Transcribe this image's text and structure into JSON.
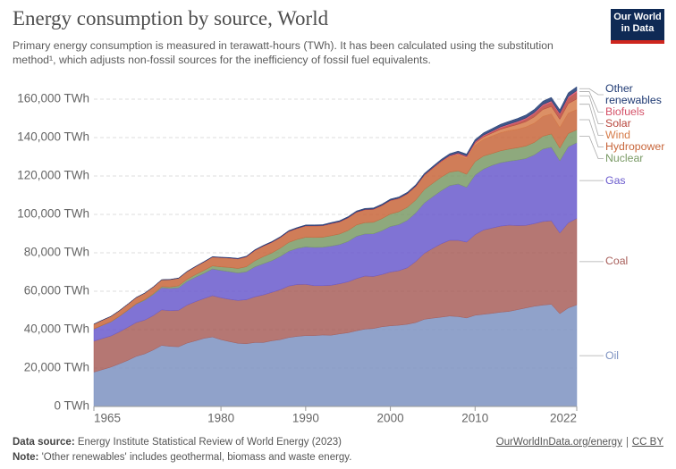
{
  "header": {
    "title": "Energy consumption by source, World",
    "subtitle": "Primary energy consumption is measured in terawatt-hours (TWh). It has been calculated using the  substitution method¹, which adjusts non-fossil sources for the inefficiency of fossil fuel equivalents.",
    "logo": "Our World in Data"
  },
  "chart_data": {
    "type": "stacked-area",
    "x": [
      1965,
      1966,
      1967,
      1968,
      1969,
      1970,
      1971,
      1972,
      1973,
      1974,
      1975,
      1976,
      1977,
      1978,
      1979,
      1980,
      1981,
      1982,
      1983,
      1984,
      1985,
      1986,
      1987,
      1988,
      1989,
      1990,
      1991,
      1992,
      1993,
      1994,
      1995,
      1996,
      1997,
      1998,
      1999,
      2000,
      2001,
      2002,
      2003,
      2004,
      2005,
      2006,
      2007,
      2008,
      2009,
      2010,
      2011,
      2012,
      2013,
      2014,
      2015,
      2016,
      2017,
      2018,
      2019,
      2020,
      2021,
      2022
    ],
    "xlim": [
      1965,
      2022
    ],
    "xticks": [
      1965,
      1980,
      1990,
      2000,
      2010,
      2022
    ],
    "ylim": [
      0,
      170000
    ],
    "yticks": [
      {
        "value": 0,
        "label": "0 TWh"
      },
      {
        "value": 20000,
        "label": "20,000 TWh"
      },
      {
        "value": 40000,
        "label": "40,000 TWh"
      },
      {
        "value": 60000,
        "label": "60,000 TWh"
      },
      {
        "value": 80000,
        "label": "80,000 TWh"
      },
      {
        "value": 100000,
        "label": "100,000 TWh"
      },
      {
        "value": 120000,
        "label": "120,000 TWh"
      },
      {
        "value": 140000,
        "label": "140,000 TWh"
      },
      {
        "value": 160000,
        "label": "160,000 TWh"
      }
    ],
    "grid": true,
    "series": [
      {
        "name": "Oil",
        "color": "#7d92c1",
        "values": [
          17900,
          19200,
          20500,
          22200,
          24000,
          26100,
          27400,
          29400,
          31800,
          31300,
          31100,
          33000,
          34200,
          35500,
          36200,
          34800,
          33800,
          32900,
          32700,
          33300,
          33300,
          34200,
          34800,
          35900,
          36500,
          36900,
          36900,
          37200,
          37100,
          37800,
          38400,
          39400,
          40300,
          40600,
          41500,
          42000,
          42300,
          42800,
          43700,
          45400,
          46000,
          46500,
          47100,
          46800,
          46100,
          47500,
          48000,
          48500,
          49100,
          49500,
          50400,
          51300,
          52200,
          52800,
          53200,
          48300,
          51300,
          52900
        ]
      },
      {
        "name": "Coal",
        "color": "#a85f5a",
        "values": [
          16100,
          16200,
          16200,
          16600,
          17200,
          17600,
          17600,
          17900,
          18500,
          18600,
          19000,
          19800,
          20400,
          20700,
          21500,
          21800,
          22000,
          22300,
          22900,
          23800,
          24800,
          25200,
          26000,
          26800,
          27000,
          26700,
          26000,
          25700,
          26000,
          26100,
          26500,
          27200,
          27600,
          27100,
          27200,
          28000,
          28400,
          29400,
          31800,
          34300,
          36300,
          38200,
          39400,
          39700,
          39500,
          42000,
          43900,
          44400,
          44800,
          44900,
          43800,
          43000,
          43000,
          43500,
          43500,
          42000,
          44300,
          45000
        ]
      },
      {
        "name": "Gas",
        "color": "#6a5acd",
        "values": [
          6300,
          6800,
          7300,
          8000,
          8800,
          9600,
          10300,
          10900,
          11500,
          11600,
          11700,
          12300,
          12700,
          13100,
          13900,
          14200,
          14400,
          14300,
          14500,
          15600,
          16200,
          16500,
          17300,
          18100,
          18800,
          19500,
          19900,
          20000,
          20400,
          20400,
          21000,
          22000,
          21900,
          22200,
          22800,
          23700,
          24000,
          24700,
          25300,
          26200,
          26900,
          27600,
          28500,
          29300,
          28500,
          31000,
          31700,
          32600,
          33000,
          33300,
          34100,
          34800,
          35800,
          37700,
          38300,
          37600,
          39600,
          39400
        ]
      },
      {
        "name": "Nuclear",
        "color": "#7a9a66",
        "values": [
          70,
          90,
          110,
          150,
          180,
          230,
          330,
          450,
          570,
          720,
          1000,
          1100,
          1350,
          1550,
          1590,
          1890,
          2200,
          2350,
          2650,
          3150,
          3700,
          4000,
          4300,
          4600,
          4700,
          5000,
          5200,
          5200,
          5400,
          5500,
          5700,
          5900,
          5900,
          6000,
          6300,
          6500,
          6700,
          6800,
          6700,
          7000,
          7000,
          7100,
          7000,
          6900,
          6800,
          7000,
          6800,
          6200,
          6200,
          6300,
          6400,
          6500,
          6500,
          6700,
          6900,
          6600,
          6900,
          6700
        ]
      },
      {
        "name": "Hydropower",
        "color": "#c8663b",
        "values": [
          2500,
          2650,
          2750,
          2900,
          3050,
          3200,
          3350,
          3500,
          3550,
          3850,
          3950,
          4000,
          4150,
          4400,
          4600,
          4800,
          4850,
          4950,
          5150,
          5350,
          5450,
          5500,
          5500,
          5650,
          5650,
          5850,
          5950,
          5950,
          6200,
          6250,
          6500,
          6550,
          6650,
          6650,
          6700,
          6900,
          6750,
          6800,
          6800,
          7100,
          7400,
          7600,
          7700,
          8000,
          8000,
          8500,
          8700,
          9100,
          9400,
          9600,
          9600,
          9900,
          10000,
          10300,
          10400,
          10700,
          10600,
          10600
        ]
      },
      {
        "name": "Wind",
        "color": "#d67c4a",
        "values": [
          0,
          0,
          0,
          0,
          0,
          0,
          0,
          0,
          0,
          0,
          0,
          0,
          0,
          0,
          0,
          0,
          0,
          0,
          0,
          0,
          5,
          8,
          10,
          15,
          20,
          25,
          30,
          35,
          40,
          50,
          55,
          60,
          70,
          80,
          100,
          120,
          150,
          190,
          250,
          320,
          370,
          460,
          560,
          720,
          870,
          1080,
          1270,
          1530,
          1800,
          2000,
          2500,
          2800,
          3300,
          3600,
          3900,
          4300,
          5000,
          5500
        ]
      },
      {
        "name": "Solar",
        "color": "#b8463c",
        "values": [
          0,
          0,
          0,
          0,
          0,
          0,
          0,
          0,
          0,
          0,
          0,
          0,
          0,
          0,
          0,
          0,
          0,
          0,
          0,
          0,
          0,
          0,
          0,
          0,
          0,
          0,
          0,
          0,
          0,
          0,
          0,
          2,
          2,
          3,
          3,
          4,
          5,
          6,
          7,
          10,
          15,
          25,
          40,
          65,
          90,
          150,
          280,
          420,
          560,
          680,
          850,
          1100,
          1400,
          1700,
          1950,
          2250,
          2700,
          3300
        ]
      },
      {
        "name": "Biofuels",
        "color": "#d45168",
        "values": [
          0,
          0,
          0,
          0,
          0,
          0,
          0,
          0,
          0,
          0,
          10,
          20,
          30,
          40,
          50,
          60,
          80,
          100,
          120,
          130,
          140,
          140,
          140,
          140,
          130,
          130,
          140,
          140,
          150,
          150,
          160,
          160,
          170,
          170,
          160,
          160,
          170,
          190,
          230,
          250,
          290,
          350,
          420,
          530,
          570,
          630,
          640,
          650,
          700,
          760,
          790,
          800,
          840,
          910,
          970,
          900,
          970,
          1050
        ]
      },
      {
        "name": "Other renewables",
        "color": "#1f3a73",
        "values": [
          60,
          60,
          70,
          70,
          80,
          90,
          100,
          110,
          120,
          130,
          140,
          150,
          160,
          170,
          180,
          200,
          220,
          240,
          260,
          280,
          300,
          320,
          340,
          370,
          390,
          410,
          430,
          450,
          470,
          490,
          510,
          530,
          550,
          570,
          590,
          610,
          620,
          650,
          690,
          730,
          780,
          830,
          880,
          940,
          1000,
          1100,
          1190,
          1280,
          1360,
          1440,
          1520,
          1590,
          1660,
          1730,
          1800,
          1830,
          1950,
          2000
        ]
      }
    ]
  },
  "footer": {
    "source_label": "Data source:",
    "source": "Energy Institute Statistical Review of World Energy (2023)",
    "url": "OurWorldInData.org/energy",
    "license": "CC BY",
    "note_label": "Note:",
    "note": "'Other renewables' includes geothermal, biomass and waste energy."
  }
}
